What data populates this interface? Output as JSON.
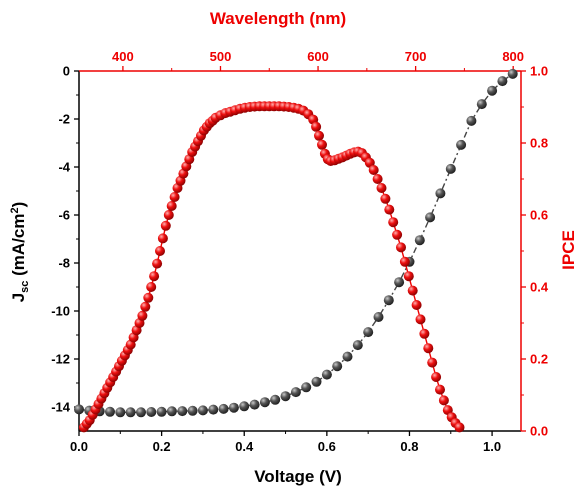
{
  "chart_data": {
    "type": "scatter",
    "axes": {
      "bottom": {
        "label": "Voltage (V)",
        "range": [
          0,
          1.07
        ],
        "ticks": [
          "0.0",
          "0.2",
          "0.4",
          "0.6",
          "0.8",
          "1.0"
        ],
        "color": "#000000"
      },
      "top": {
        "label": "Wavelength (nm)",
        "range": [
          355,
          808
        ],
        "ticks": [
          "400",
          "500",
          "600",
          "700",
          "800"
        ],
        "color": "#ee0000"
      },
      "left": {
        "label_main": "J",
        "label_sub": "sc",
        "label_rest": " (mA/cm",
        "label_sup": "2",
        "label_end": ")",
        "range": [
          -15,
          0
        ],
        "ticks": [
          "0",
          "-2",
          "-4",
          "-6",
          "-8",
          "-10",
          "-12",
          "-14"
        ],
        "color": "#000000"
      },
      "right": {
        "label": "IPCE",
        "range": [
          0,
          1.0
        ],
        "ticks": [
          "0.0",
          "0.2",
          "0.4",
          "0.6",
          "0.8",
          "1.0"
        ],
        "color": "#ee0000"
      }
    },
    "grid": false,
    "legend": "none",
    "series": [
      {
        "axes": [
          "bottom",
          "left"
        ],
        "color": "#444444",
        "line_style": "dash-dot",
        "points": [
          [
            0.0,
            -14.1
          ],
          [
            0.025,
            -14.15
          ],
          [
            0.05,
            -14.18
          ],
          [
            0.075,
            -14.2
          ],
          [
            0.1,
            -14.22
          ],
          [
            0.125,
            -14.22
          ],
          [
            0.15,
            -14.22
          ],
          [
            0.175,
            -14.21
          ],
          [
            0.2,
            -14.2
          ],
          [
            0.225,
            -14.18
          ],
          [
            0.25,
            -14.17
          ],
          [
            0.275,
            -14.16
          ],
          [
            0.3,
            -14.14
          ],
          [
            0.325,
            -14.11
          ],
          [
            0.35,
            -14.08
          ],
          [
            0.375,
            -14.03
          ],
          [
            0.4,
            -13.97
          ],
          [
            0.425,
            -13.9
          ],
          [
            0.45,
            -13.8
          ],
          [
            0.475,
            -13.7
          ],
          [
            0.5,
            -13.55
          ],
          [
            0.525,
            -13.38
          ],
          [
            0.55,
            -13.18
          ],
          [
            0.575,
            -12.95
          ],
          [
            0.6,
            -12.65
          ],
          [
            0.625,
            -12.3
          ],
          [
            0.65,
            -11.9
          ],
          [
            0.675,
            -11.42
          ],
          [
            0.7,
            -10.88
          ],
          [
            0.725,
            -10.25
          ],
          [
            0.75,
            -9.55
          ],
          [
            0.775,
            -8.8
          ],
          [
            0.8,
            -7.95
          ],
          [
            0.825,
            -7.05
          ],
          [
            0.85,
            -6.1
          ],
          [
            0.875,
            -5.1
          ],
          [
            0.9,
            -4.08
          ],
          [
            0.925,
            -3.08
          ],
          [
            0.95,
            -2.08
          ],
          [
            0.975,
            -1.38
          ],
          [
            1.0,
            -0.82
          ],
          [
            1.025,
            -0.42
          ],
          [
            1.05,
            -0.12
          ]
        ]
      },
      {
        "axes": [
          "top",
          "right"
        ],
        "color": "#ee0000",
        "line_style": "solid",
        "points": [
          [
            360,
            0.01
          ],
          [
            363,
            0.02
          ],
          [
            366,
            0.03
          ],
          [
            369,
            0.045
          ],
          [
            372,
            0.06
          ],
          [
            375,
            0.075
          ],
          [
            378,
            0.09
          ],
          [
            381,
            0.105
          ],
          [
            384,
            0.12
          ],
          [
            387,
            0.135
          ],
          [
            390,
            0.15
          ],
          [
            393,
            0.165
          ],
          [
            396,
            0.18
          ],
          [
            399,
            0.195
          ],
          [
            402,
            0.21
          ],
          [
            405,
            0.225
          ],
          [
            408,
            0.24
          ],
          [
            411,
            0.26
          ],
          [
            414,
            0.28
          ],
          [
            417,
            0.3
          ],
          [
            420,
            0.32
          ],
          [
            423,
            0.345
          ],
          [
            426,
            0.37
          ],
          [
            429,
            0.4
          ],
          [
            432,
            0.43
          ],
          [
            435,
            0.465
          ],
          [
            438,
            0.5
          ],
          [
            441,
            0.535
          ],
          [
            444,
            0.57
          ],
          [
            447,
            0.6
          ],
          [
            450,
            0.625
          ],
          [
            453,
            0.65
          ],
          [
            456,
            0.675
          ],
          [
            459,
            0.695
          ],
          [
            462,
            0.715
          ],
          [
            465,
            0.735
          ],
          [
            468,
            0.755
          ],
          [
            471,
            0.775
          ],
          [
            474,
            0.79
          ],
          [
            477,
            0.805
          ],
          [
            480,
            0.82
          ],
          [
            483,
            0.835
          ],
          [
            486,
            0.845
          ],
          [
            489,
            0.855
          ],
          [
            492,
            0.862
          ],
          [
            495,
            0.87
          ],
          [
            500,
            0.877
          ],
          [
            505,
            0.883
          ],
          [
            510,
            0.887
          ],
          [
            515,
            0.891
          ],
          [
            520,
            0.895
          ],
          [
            525,
            0.898
          ],
          [
            530,
            0.9
          ],
          [
            535,
            0.901
          ],
          [
            540,
            0.902
          ],
          [
            545,
            0.902
          ],
          [
            550,
            0.902
          ],
          [
            555,
            0.902
          ],
          [
            560,
            0.902
          ],
          [
            565,
            0.901
          ],
          [
            570,
            0.9
          ],
          [
            575,
            0.898
          ],
          [
            580,
            0.895
          ],
          [
            585,
            0.89
          ],
          [
            590,
            0.88
          ],
          [
            595,
            0.865
          ],
          [
            598,
            0.845
          ],
          [
            601,
            0.82
          ],
          [
            604,
            0.795
          ],
          [
            607,
            0.77
          ],
          [
            610,
            0.755
          ],
          [
            613,
            0.75
          ],
          [
            617,
            0.752
          ],
          [
            621,
            0.756
          ],
          [
            625,
            0.76
          ],
          [
            629,
            0.765
          ],
          [
            633,
            0.77
          ],
          [
            637,
            0.774
          ],
          [
            641,
            0.776
          ],
          [
            645,
            0.772
          ],
          [
            649,
            0.76
          ],
          [
            653,
            0.745
          ],
          [
            657,
            0.725
          ],
          [
            661,
            0.7
          ],
          [
            665,
            0.675
          ],
          [
            669,
            0.645
          ],
          [
            673,
            0.615
          ],
          [
            677,
            0.58
          ],
          [
            681,
            0.545
          ],
          [
            685,
            0.51
          ],
          [
            689,
            0.47
          ],
          [
            693,
            0.43
          ],
          [
            697,
            0.39
          ],
          [
            701,
            0.35
          ],
          [
            705,
            0.31
          ],
          [
            709,
            0.27
          ],
          [
            713,
            0.23
          ],
          [
            717,
            0.19
          ],
          [
            721,
            0.15
          ],
          [
            725,
            0.115
          ],
          [
            729,
            0.085
          ],
          [
            733,
            0.058
          ],
          [
            737,
            0.038
          ],
          [
            741,
            0.022
          ],
          [
            745,
            0.01
          ]
        ]
      }
    ]
  }
}
